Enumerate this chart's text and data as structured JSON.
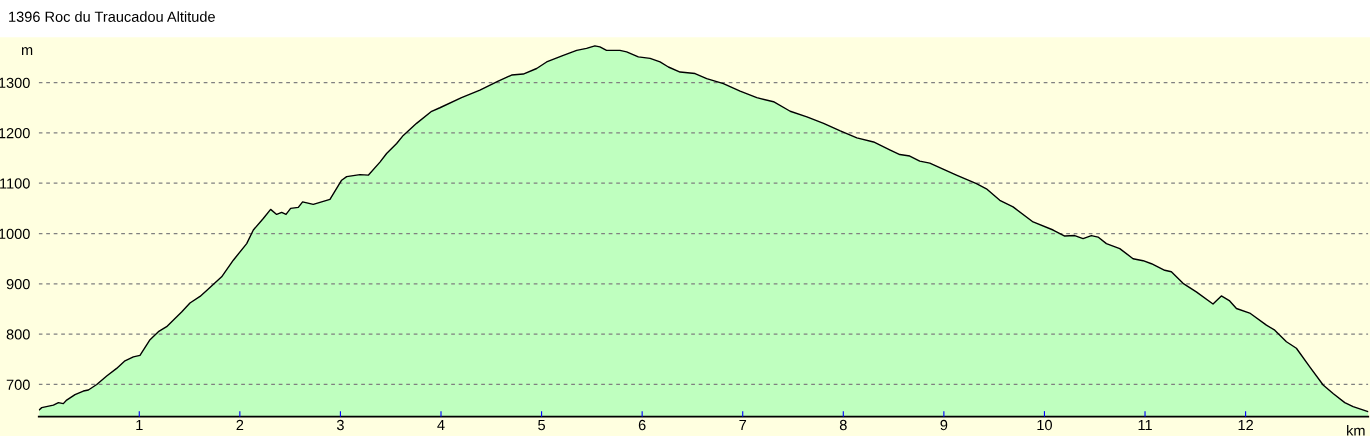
{
  "chart_data": {
    "type": "area",
    "title": "1396 Roc du Traucadou Altitude",
    "xlabel": "km",
    "ylabel": "m",
    "xlim": [
      0,
      13.22
    ],
    "ylim": [
      636,
      1390
    ],
    "xticks": [
      1,
      2,
      3,
      4,
      5,
      6,
      7,
      8,
      9,
      10,
      11,
      12
    ],
    "yticks": [
      700,
      800,
      900,
      1000,
      1100,
      1200,
      1300
    ],
    "grid": "y",
    "legend": false,
    "series": [
      {
        "color": "#bfffbf",
        "x": [
          0.007,
          0.03,
          0.146,
          0.196,
          0.245,
          0.278,
          0.361,
          0.444,
          0.494,
          0.577,
          0.676,
          0.775,
          0.858,
          0.941,
          1.007,
          1.107,
          1.19,
          1.272,
          1.355,
          1.421,
          1.504,
          1.604,
          1.67,
          1.819,
          1.935,
          2.068,
          2.134,
          2.233,
          2.306,
          2.366,
          2.416,
          2.459,
          2.505,
          2.581,
          2.624,
          2.73,
          2.813,
          2.896,
          3.012,
          3.062,
          3.194,
          3.277,
          3.393,
          3.459,
          3.559,
          3.625,
          3.757,
          3.907,
          3.989,
          4.204,
          4.387,
          4.569,
          4.702,
          4.818,
          4.951,
          5.05,
          5.216,
          5.349,
          5.447,
          5.53,
          5.58,
          5.646,
          5.779,
          5.846,
          5.962,
          6.079,
          6.178,
          6.261,
          6.377,
          6.526,
          6.642,
          6.808,
          6.974,
          7.14,
          7.306,
          7.472,
          7.638,
          7.804,
          7.97,
          8.135,
          8.301,
          8.467,
          8.562,
          8.661,
          8.76,
          8.86,
          8.992,
          9.125,
          9.324,
          9.423,
          9.556,
          9.688,
          9.887,
          10.086,
          10.202,
          10.301,
          10.384,
          10.467,
          10.533,
          10.616,
          10.749,
          10.881,
          10.981,
          11.064,
          11.196,
          11.262,
          11.378,
          11.51,
          11.676,
          11.759,
          11.842,
          11.909,
          12.041,
          12.207,
          12.29,
          12.406,
          12.505,
          12.638,
          12.771,
          12.87,
          12.986,
          13.069,
          13.218
        ],
        "values": [
          650,
          654,
          659,
          664,
          662,
          669,
          680,
          687,
          689,
          700,
          717,
          732,
          747,
          755,
          758,
          789,
          805,
          815,
          831,
          844,
          862,
          875,
          887,
          914,
          947,
          980,
          1007,
          1030,
          1048,
          1038,
          1042,
          1038,
          1050,
          1052,
          1063,
          1058,
          1063,
          1068,
          1106,
          1113,
          1117,
          1116,
          1142,
          1159,
          1179,
          1195,
          1219,
          1243,
          1250,
          1270,
          1285,
          1303,
          1315,
          1317,
          1328,
          1341,
          1354,
          1364,
          1368,
          1373,
          1371,
          1364,
          1364,
          1361,
          1351,
          1348,
          1341,
          1331,
          1321,
          1318,
          1308,
          1298,
          1283,
          1270,
          1262,
          1243,
          1232,
          1219,
          1204,
          1190,
          1182,
          1166,
          1157,
          1154,
          1144,
          1140,
          1128,
          1116,
          1099,
          1089,
          1066,
          1053,
          1023,
          1007,
          995,
          996,
          990,
          996,
          993,
          980,
          970,
          950,
          946,
          940,
          927,
          924,
          901,
          884,
          860,
          876,
          866,
          851,
          842,
          818,
          808,
          785,
          772,
          735,
          699,
          682,
          664,
          656,
          646
        ]
      }
    ]
  }
}
